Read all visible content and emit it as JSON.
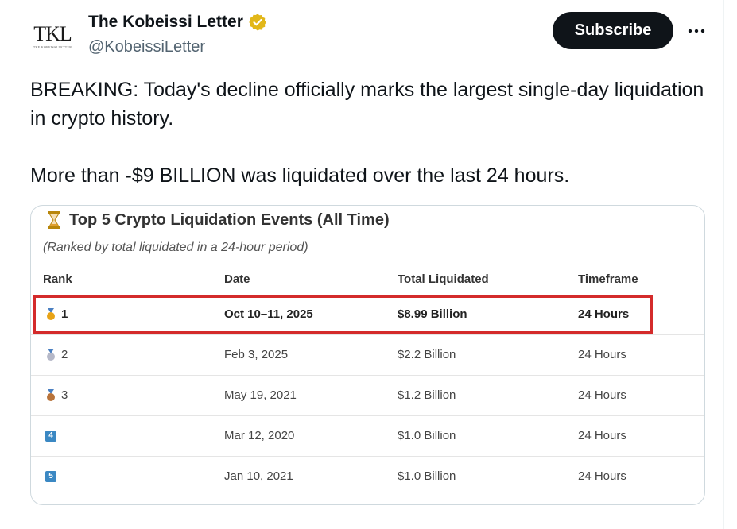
{
  "post": {
    "display_name": "The Kobeissi Letter",
    "handle": "@KobeissiLetter",
    "avatar_monogram": "TKL",
    "avatar_tagline": "THE KOBEISSI LETTER",
    "verified_icon": "verified-badge-icon",
    "subscribe_label": "Subscribe",
    "more_icon": "more-options-icon",
    "text_line1": "BREAKING: Today's decline officially marks the largest single-day liquidation in crypto history.",
    "text_line2": "More than -$9 BILLION was liquidated over the last 24 hours.",
    "colors": {
      "badge": "#e2b719",
      "subscribe_bg": "#0f1419",
      "highlight_border": "#d42b2b",
      "handle": "#536471"
    }
  },
  "media": {
    "title": "Top 5 Crypto Liquidation Events (All Time)",
    "title_icon": "hourglass-icon",
    "subtitle": "(Ranked by total liquidated in a 24-hour period)",
    "columns": [
      "Rank",
      "Date",
      "Total Liquidated",
      "Timeframe"
    ],
    "rows": [
      {
        "icon": "gold-medal-icon",
        "rank": "1",
        "date": "Oct 10–11, 2025",
        "total": "$8.99 Billion",
        "timeframe": "24 Hours",
        "highlighted": true
      },
      {
        "icon": "silver-medal-icon",
        "rank": "2",
        "date": "Feb 3, 2025",
        "total": "$2.2 Billion",
        "timeframe": "24 Hours"
      },
      {
        "icon": "bronze-medal-icon",
        "rank": "3",
        "date": "May 19, 2021",
        "total": "$1.2 Billion",
        "timeframe": "24 Hours"
      },
      {
        "icon": "keycap-4-icon",
        "rank": "",
        "keycap": "4",
        "date": "Mar 12, 2020",
        "total": "$1.0 Billion",
        "timeframe": "24 Hours"
      },
      {
        "icon": "keycap-5-icon",
        "rank": "",
        "keycap": "5",
        "date": "Jan 10, 2021",
        "total": "$1.0 Billion",
        "timeframe": "24 Hours"
      }
    ]
  }
}
